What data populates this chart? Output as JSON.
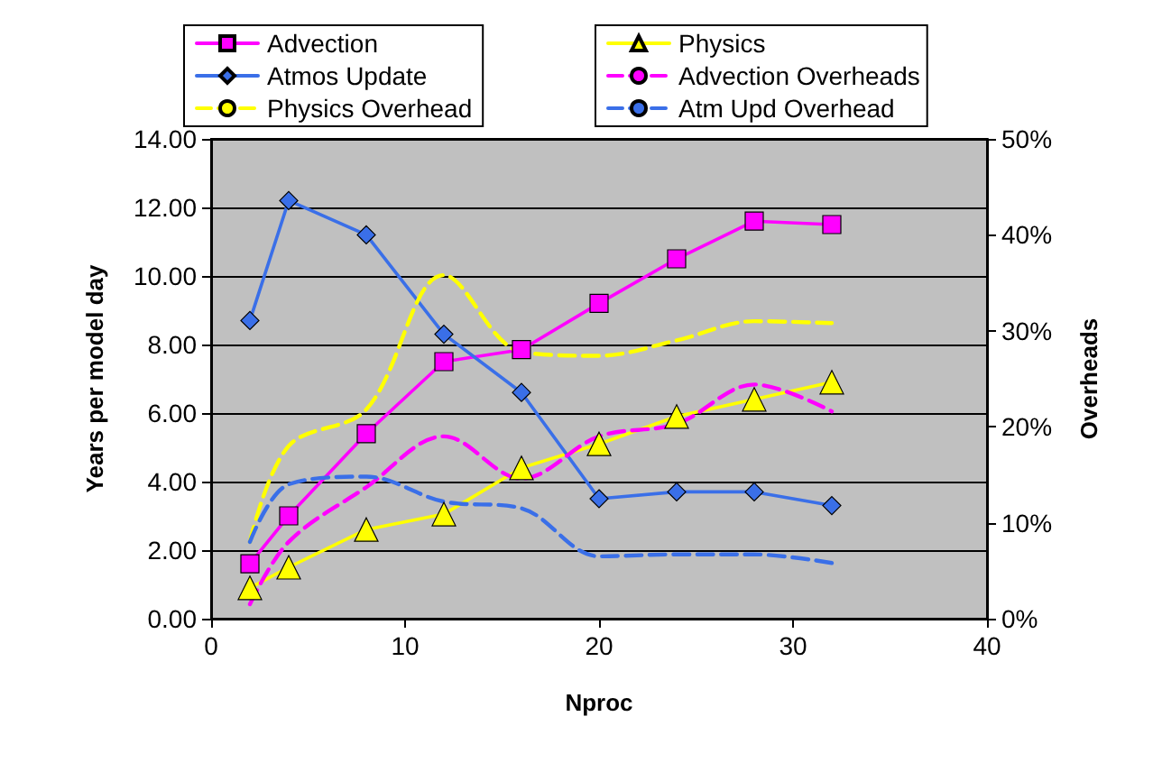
{
  "chart_data": {
    "type": "line",
    "xlabel": "Nproc",
    "ylabel": "Years per model day",
    "y2label": "Overheads",
    "xlim": [
      0,
      40
    ],
    "xticks": [
      0,
      10,
      20,
      30,
      40
    ],
    "ylim": [
      0,
      14
    ],
    "yticks": [
      {
        "value": 0,
        "label": "0.00"
      },
      {
        "value": 2,
        "label": "2.00"
      },
      {
        "value": 4,
        "label": "4.00"
      },
      {
        "value": 6,
        "label": "6.00"
      },
      {
        "value": 8,
        "label": "8.00"
      },
      {
        "value": 10,
        "label": "10.00"
      },
      {
        "value": 12,
        "label": "12.00"
      },
      {
        "value": 14,
        "label": "14.00"
      }
    ],
    "y2lim": [
      0,
      50
    ],
    "y2ticks": [
      {
        "value": 0,
        "label": "0%"
      },
      {
        "value": 10,
        "label": "10%"
      },
      {
        "value": 20,
        "label": "20%"
      },
      {
        "value": 30,
        "label": "30%"
      },
      {
        "value": 40,
        "label": "40%"
      },
      {
        "value": 50,
        "label": "50%"
      }
    ],
    "x": [
      2,
      4,
      8,
      12,
      16,
      20,
      24,
      28,
      32
    ],
    "grid": "y",
    "legend": "top",
    "series": [
      {
        "name": "Advection",
        "color": "#ff00ff",
        "marker": "square",
        "line_style": "solid",
        "values": [
          1.6,
          3.0,
          5.4,
          7.5,
          7.85,
          9.2,
          10.5,
          11.6,
          11.5
        ]
      },
      {
        "name": "Physics",
        "color": "#ffff00",
        "marker": "triangle",
        "line_style": "solid",
        "values": [
          0.9,
          1.5,
          2.6,
          3.05,
          4.4,
          5.1,
          5.9,
          6.4,
          6.9
        ]
      },
      {
        "name": "Atmos Update",
        "color": "#3a6fe8",
        "marker": "diamond",
        "line_style": "solid",
        "values": [
          8.7,
          12.2,
          11.2,
          8.3,
          6.6,
          3.5,
          3.7,
          3.7,
          3.3
        ]
      },
      {
        "name": "Advection Overheads",
        "color": "#ff00ff",
        "marker": "none",
        "line_style": "dashed",
        "axis": "y2",
        "values": [
          1.5,
          8,
          13.7,
          19,
          14.6,
          19,
          20.3,
          24.4,
          21.6
        ]
      },
      {
        "name": "Physics Overhead",
        "color": "#ffff00",
        "marker": "none",
        "line_style": "dashed",
        "axis": "y2",
        "values": [
          8,
          18,
          21.8,
          35.8,
          27.8,
          27.4,
          29,
          31,
          30.8
        ]
      },
      {
        "name": "Atm Upd Overhead",
        "color": "#3a6fe8",
        "marker": "none",
        "line_style": "dashed",
        "axis": "y2",
        "values": [
          8,
          14,
          14.8,
          12.2,
          11.5,
          6.5,
          6.7,
          6.7,
          5.8
        ]
      }
    ]
  }
}
